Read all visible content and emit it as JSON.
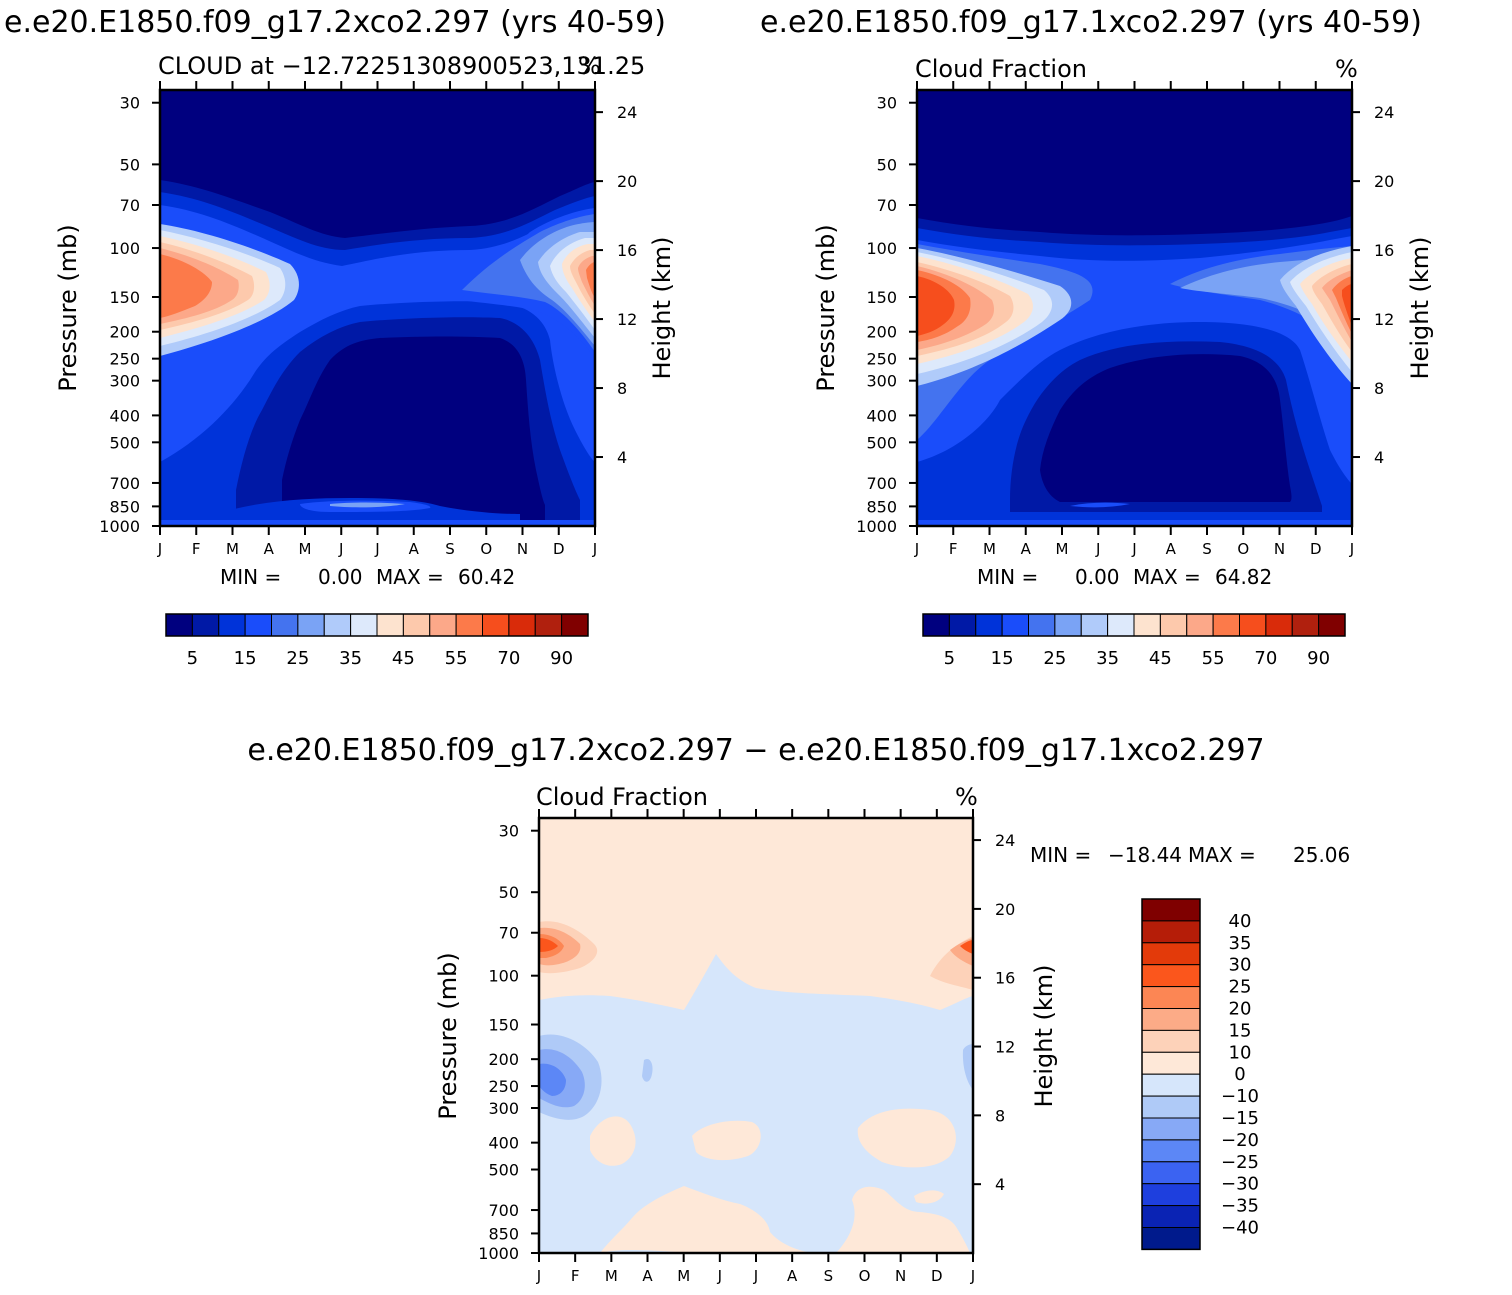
{
  "chart_data": [
    {
      "type": "contour",
      "title": "e.e20.E1850.f09_g17.2xco2.297 (yrs 40-59)",
      "subtitle_left": "CLOUD at −12.72251308900523,131.25",
      "subtitle_right": "%",
      "xlabel": "",
      "ylabel": "Pressure (mb)",
      "y2label": "Height (km)",
      "months": [
        "J",
        "F",
        "M",
        "A",
        "M",
        "J",
        "J",
        "A",
        "S",
        "O",
        "N",
        "D",
        "J"
      ],
      "pressure_ticks": [
        "30",
        "50",
        "70",
        "100",
        "150",
        "200",
        "250",
        "300",
        "400",
        "500",
        "700",
        "850",
        "1000"
      ],
      "pressure_values": [
        30,
        50,
        70,
        100,
        150,
        200,
        250,
        300,
        400,
        500,
        700,
        850,
        1000
      ],
      "height_ticks": [
        "24",
        "20",
        "16",
        "12",
        "8",
        "4"
      ],
      "height_values": [
        24,
        20,
        16,
        12,
        8,
        4
      ],
      "ylim": [
        1000,
        27
      ],
      "min_label": "MIN =",
      "min_value": "0.00",
      "max_label": "MAX =",
      "max_value": "60.42",
      "colorbar_labels": [
        "5",
        "15",
        "25",
        "35",
        "45",
        "55",
        "70",
        "90"
      ],
      "colorbar_levels": [
        0,
        5,
        10,
        15,
        20,
        25,
        30,
        35,
        40,
        45,
        50,
        55,
        60,
        70,
        80,
        90
      ],
      "contour_features": [
        {
          "name": "upper-troposphere max (Jan-Feb)",
          "pressure_mb": 140,
          "value": 58
        },
        {
          "name": "upper-troposphere max (Dec-Jan)",
          "pressure_mb": 140,
          "value": 56
        },
        {
          "name": "mid-troposphere minimum (Jun-Sep)",
          "pressure_mb": 500,
          "value": 0
        }
      ]
    },
    {
      "type": "contour",
      "title": "e.e20.E1850.f09_g17.1xco2.297 (yrs 40-59)",
      "subtitle_left": "Cloud Fraction",
      "subtitle_right": "%",
      "xlabel": "",
      "ylabel": "Pressure (mb)",
      "y2label": "Height (km)",
      "months": [
        "J",
        "F",
        "M",
        "A",
        "M",
        "J",
        "J",
        "A",
        "S",
        "O",
        "N",
        "D",
        "J"
      ],
      "pressure_ticks": [
        "30",
        "50",
        "70",
        "100",
        "150",
        "200",
        "250",
        "300",
        "400",
        "500",
        "700",
        "850",
        "1000"
      ],
      "pressure_values": [
        30,
        50,
        70,
        100,
        150,
        200,
        250,
        300,
        400,
        500,
        700,
        850,
        1000
      ],
      "height_ticks": [
        "24",
        "20",
        "16",
        "12",
        "8",
        "4"
      ],
      "height_values": [
        24,
        20,
        16,
        12,
        8,
        4
      ],
      "ylim": [
        1000,
        27
      ],
      "min_label": "MIN =",
      "min_value": "0.00",
      "max_label": "MAX =",
      "max_value": "64.82",
      "colorbar_labels": [
        "5",
        "15",
        "25",
        "35",
        "45",
        "55",
        "70",
        "90"
      ],
      "colorbar_levels": [
        0,
        5,
        10,
        15,
        20,
        25,
        30,
        35,
        40,
        45,
        50,
        55,
        60,
        70,
        80,
        90
      ],
      "contour_features": [
        {
          "name": "upper-troposphere max (Jan-Feb)",
          "pressure_mb": 160,
          "value": 62
        },
        {
          "name": "upper-troposphere max (Dec-Jan)",
          "pressure_mb": 160,
          "value": 58
        },
        {
          "name": "mid-troposphere minimum (Jun-Sep)",
          "pressure_mb": 500,
          "value": 0
        }
      ]
    },
    {
      "type": "contour",
      "title": "e.e20.E1850.f09_g17.2xco2.297 − e.e20.E1850.f09_g17.1xco2.297",
      "subtitle_left": "Cloud Fraction",
      "subtitle_right": "%",
      "xlabel": "",
      "ylabel": "Pressure (mb)",
      "y2label": "Height (km)",
      "months": [
        "J",
        "F",
        "M",
        "A",
        "M",
        "J",
        "J",
        "A",
        "S",
        "O",
        "N",
        "D",
        "J"
      ],
      "pressure_ticks": [
        "30",
        "50",
        "70",
        "100",
        "150",
        "200",
        "250",
        "300",
        "400",
        "500",
        "700",
        "850",
        "1000"
      ],
      "pressure_values": [
        30,
        50,
        70,
        100,
        150,
        200,
        250,
        300,
        400,
        500,
        700,
        850,
        1000
      ],
      "height_ticks": [
        "24",
        "20",
        "16",
        "12",
        "8",
        "4"
      ],
      "height_values": [
        24,
        20,
        16,
        12,
        8,
        4
      ],
      "ylim": [
        1000,
        27
      ],
      "min_label": "MIN =",
      "min_value": "−18.44",
      "max_label": "MAX =",
      "max_value": "25.06",
      "colorbar_labels": [
        "40",
        "35",
        "30",
        "25",
        "20",
        "15",
        "10",
        "0",
        "−10",
        "−15",
        "−20",
        "−25",
        "−30",
        "−35",
        "−40"
      ],
      "colorbar_levels": [
        40,
        35,
        30,
        25,
        20,
        15,
        10,
        0,
        -10,
        -15,
        -20,
        -25,
        -30,
        -35,
        -40
      ],
      "contour_features": [
        {
          "name": "positive max near 70 mb (Jan)",
          "pressure_mb": 75,
          "value": 25
        },
        {
          "name": "negative min near 220 mb (Jan)",
          "pressure_mb": 220,
          "value": -18
        }
      ]
    }
  ],
  "colors": {
    "seq": [
      "#00007f",
      "#0019a6",
      "#0033d9",
      "#1a4dfa",
      "#4473ef",
      "#7aa3f5",
      "#b0cbfa",
      "#dde9fb",
      "#fde3cf",
      "#fdc9ac",
      "#fca889",
      "#fc7a4a",
      "#f64e1d",
      "#d92b0a",
      "#b0200e",
      "#800000"
    ],
    "diff_pos": [
      "#7f0000",
      "#b51d08",
      "#e33a0a",
      "#fb561c",
      "#fc8654",
      "#fcab87",
      "#fdd2b9",
      "#fee8d8"
    ],
    "diff_neg": [
      "#d6e6fb",
      "#afcaf7",
      "#87a9f6",
      "#5c87f6",
      "#3b63f2",
      "#1e3fde",
      "#0a23b4",
      "#001a8c"
    ]
  }
}
